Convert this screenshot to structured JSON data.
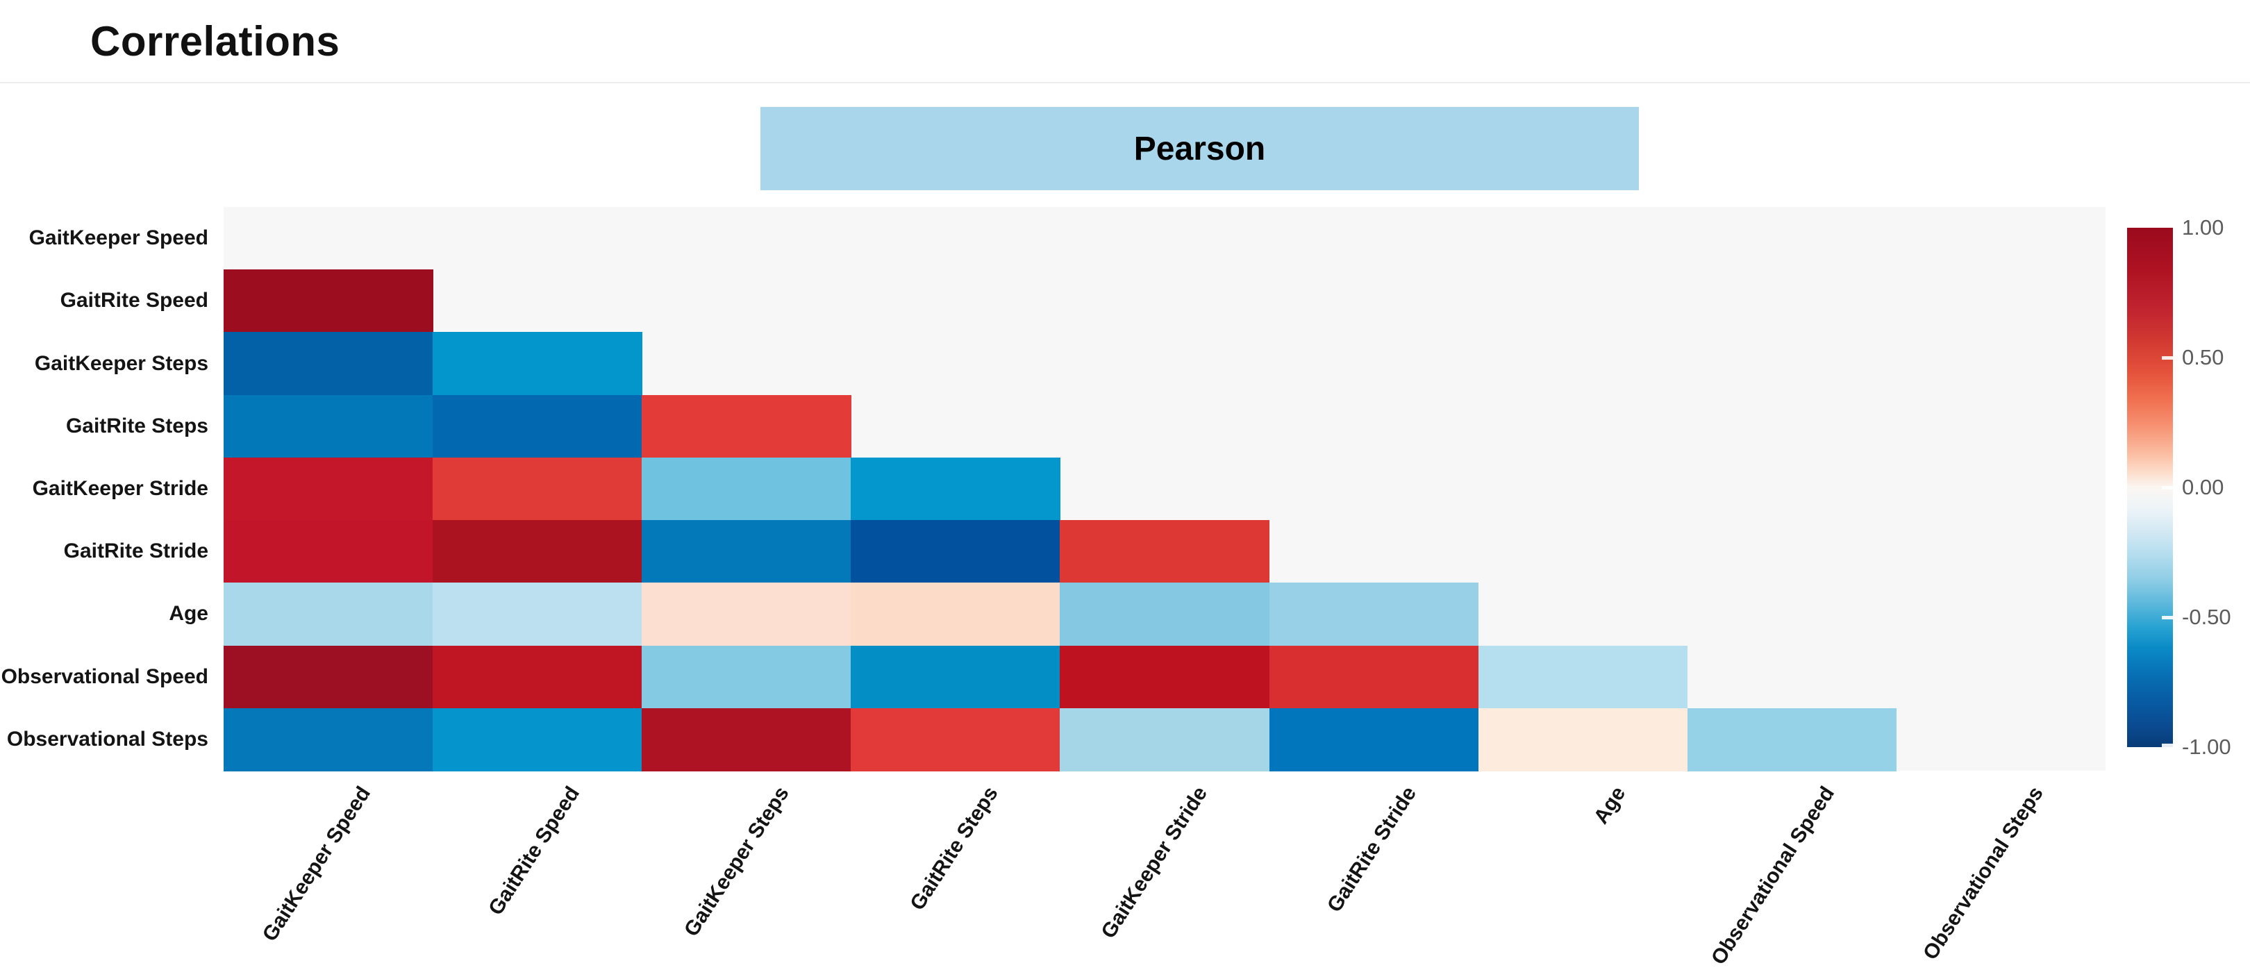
{
  "page": {
    "title": "Correlations"
  },
  "method_header": {
    "label": "Pearson",
    "bg_color": "#A9D6EA",
    "text_color": "#000000"
  },
  "chart_data": {
    "type": "heatmap",
    "title": "Correlations",
    "method": "Pearson",
    "shape": "lower-triangular correlation matrix (row i has cells for columns < i, diagonal empty)",
    "panel_bg": "#F7F7F7",
    "variables": [
      "GaitKeeper Speed",
      "GaitRite Speed",
      "GaitKeeper Steps",
      "GaitRite Steps",
      "GaitKeeper Stride",
      "GaitRite Stride",
      "Age",
      "Observational Speed",
      "Observational Steps"
    ],
    "cells": [
      {
        "r": 1,
        "c": 0,
        "row": "GaitRite Speed",
        "col": "GaitKeeper Speed",
        "value": 0.95,
        "color": "#9D0D20"
      },
      {
        "r": 2,
        "c": 0,
        "row": "GaitKeeper Steps",
        "col": "GaitKeeper Speed",
        "value": -0.75,
        "color": "#0361A7"
      },
      {
        "r": 2,
        "c": 1,
        "row": "GaitKeeper Steps",
        "col": "GaitRite Speed",
        "value": -0.5,
        "color": "#0396CC"
      },
      {
        "r": 3,
        "c": 0,
        "row": "GaitRite Steps",
        "col": "GaitKeeper Speed",
        "value": -0.62,
        "color": "#0378B8"
      },
      {
        "r": 3,
        "c": 1,
        "row": "GaitRite Steps",
        "col": "GaitRite Speed",
        "value": -0.7,
        "color": "#0269B0"
      },
      {
        "r": 3,
        "c": 2,
        "row": "GaitRite Steps",
        "col": "GaitKeeper Steps",
        "value": 0.65,
        "color": "#E33B38"
      },
      {
        "r": 4,
        "c": 0,
        "row": "GaitKeeper Stride",
        "col": "GaitKeeper Speed",
        "value": 0.85,
        "color": "#C41729"
      },
      {
        "r": 4,
        "c": 1,
        "row": "GaitKeeper Stride",
        "col": "GaitRite Speed",
        "value": 0.63,
        "color": "#E03B37"
      },
      {
        "r": 4,
        "c": 2,
        "row": "GaitKeeper Stride",
        "col": "GaitKeeper Steps",
        "value": -0.37,
        "color": "#70C3E0"
      },
      {
        "r": 4,
        "c": 3,
        "row": "GaitKeeper Stride",
        "col": "GaitRite Steps",
        "value": -0.5,
        "color": "#0397CE"
      },
      {
        "r": 5,
        "c": 0,
        "row": "GaitRite Stride",
        "col": "GaitKeeper Speed",
        "value": 0.85,
        "color": "#C2152A"
      },
      {
        "r": 5,
        "c": 1,
        "row": "GaitRite Stride",
        "col": "GaitRite Speed",
        "value": 0.9,
        "color": "#AC1320"
      },
      {
        "r": 5,
        "c": 2,
        "row": "GaitRite Stride",
        "col": "GaitKeeper Steps",
        "value": -0.62,
        "color": "#0379BA"
      },
      {
        "r": 5,
        "c": 3,
        "row": "GaitRite Stride",
        "col": "GaitRite Steps",
        "value": -0.8,
        "color": "#02519E"
      },
      {
        "r": 5,
        "c": 4,
        "row": "GaitRite Stride",
        "col": "GaitKeeper Stride",
        "value": 0.67,
        "color": "#DD3834"
      },
      {
        "r": 6,
        "c": 0,
        "row": "Age",
        "col": "GaitKeeper Speed",
        "value": -0.27,
        "color": "#A8D8E9"
      },
      {
        "r": 6,
        "c": 1,
        "row": "Age",
        "col": "GaitRite Speed",
        "value": -0.2,
        "color": "#BCE0EF"
      },
      {
        "r": 6,
        "c": 2,
        "row": "Age",
        "col": "GaitKeeper Steps",
        "value": 0.15,
        "color": "#FCDFD0"
      },
      {
        "r": 6,
        "c": 3,
        "row": "Age",
        "col": "GaitRite Steps",
        "value": 0.17,
        "color": "#FCDCC8"
      },
      {
        "r": 6,
        "c": 4,
        "row": "Age",
        "col": "GaitKeeper Stride",
        "value": -0.33,
        "color": "#84C8E2"
      },
      {
        "r": 6,
        "c": 5,
        "row": "Age",
        "col": "GaitRite Stride",
        "value": -0.3,
        "color": "#98D1E7"
      },
      {
        "r": 7,
        "c": 0,
        "row": "Observational Speed",
        "col": "GaitKeeper Speed",
        "value": 0.94,
        "color": "#9D1023"
      },
      {
        "r": 7,
        "c": 1,
        "row": "Observational Speed",
        "col": "GaitRite Speed",
        "value": 0.87,
        "color": "#C01623"
      },
      {
        "r": 7,
        "c": 2,
        "row": "Observational Speed",
        "col": "GaitKeeper Steps",
        "value": -0.33,
        "color": "#85CAE3"
      },
      {
        "r": 7,
        "c": 3,
        "row": "Observational Speed",
        "col": "GaitRite Steps",
        "value": -0.55,
        "color": "#048EC6"
      },
      {
        "r": 7,
        "c": 4,
        "row": "Observational Speed",
        "col": "GaitKeeper Stride",
        "value": 0.88,
        "color": "#BE1220"
      },
      {
        "r": 7,
        "c": 5,
        "row": "Observational Speed",
        "col": "GaitRite Stride",
        "value": 0.7,
        "color": "#D92F30"
      },
      {
        "r": 7,
        "c": 6,
        "row": "Observational Speed",
        "col": "Age",
        "value": -0.22,
        "color": "#B5DEEE"
      },
      {
        "r": 8,
        "c": 0,
        "row": "Observational Steps",
        "col": "GaitKeeper Speed",
        "value": -0.62,
        "color": "#0478B8"
      },
      {
        "r": 8,
        "c": 1,
        "row": "Observational Steps",
        "col": "GaitRite Speed",
        "value": -0.52,
        "color": "#0595CC"
      },
      {
        "r": 8,
        "c": 2,
        "row": "Observational Steps",
        "col": "GaitKeeper Steps",
        "value": 0.9,
        "color": "#AE1323"
      },
      {
        "r": 8,
        "c": 3,
        "row": "Observational Steps",
        "col": "GaitRite Steps",
        "value": 0.65,
        "color": "#E23A38"
      },
      {
        "r": 8,
        "c": 4,
        "row": "Observational Steps",
        "col": "GaitKeeper Stride",
        "value": -0.28,
        "color": "#A5D6E8"
      },
      {
        "r": 8,
        "c": 5,
        "row": "Observational Steps",
        "col": "GaitRite Stride",
        "value": -0.63,
        "color": "#0276BC"
      },
      {
        "r": 8,
        "c": 6,
        "row": "Observational Steps",
        "col": "Age",
        "value": 0.08,
        "color": "#FDEBDE"
      },
      {
        "r": 8,
        "c": 7,
        "row": "Observational Steps",
        "col": "Observational Speed",
        "value": -0.3,
        "color": "#96D2E7"
      }
    ],
    "colorbar": {
      "min": -1.0,
      "max": 1.0,
      "ticks": [
        {
          "label": "1.00",
          "value": 1.0,
          "pos": 0.0,
          "dash": false
        },
        {
          "label": "0.50",
          "value": 0.5,
          "pos": 0.25,
          "dash": true
        },
        {
          "label": "0.00",
          "value": 0.0,
          "pos": 0.5,
          "dash": true
        },
        {
          "label": "-0.50",
          "value": -0.5,
          "pos": 0.75,
          "dash": true
        },
        {
          "label": "-1.00",
          "value": -1.0,
          "pos": 1.0,
          "dash": true
        }
      ],
      "gradient_stops": [
        [
          "0%",
          "#9A0A1D"
        ],
        [
          "8%",
          "#AE1222"
        ],
        [
          "16%",
          "#C22430"
        ],
        [
          "22%",
          "#D23A31"
        ],
        [
          "28%",
          "#E5533C"
        ],
        [
          "33%",
          "#F0704F"
        ],
        [
          "38%",
          "#F69071"
        ],
        [
          "43%",
          "#FBB99D"
        ],
        [
          "47%",
          "#FCDCC9"
        ],
        [
          "50%",
          "#FBF6F2"
        ],
        [
          "54%",
          "#EDF4F8"
        ],
        [
          "58%",
          "#D6EAF4"
        ],
        [
          "63%",
          "#B4DDEE"
        ],
        [
          "68%",
          "#8CCCE5"
        ],
        [
          "73%",
          "#55B5DA"
        ],
        [
          "77%",
          "#27A2D2"
        ],
        [
          "81%",
          "#0A8AC6"
        ],
        [
          "86%",
          "#0870B4"
        ],
        [
          "91%",
          "#085CA4"
        ],
        [
          "96%",
          "#0A4A90"
        ],
        [
          "100%",
          "#083C77"
        ]
      ]
    }
  }
}
